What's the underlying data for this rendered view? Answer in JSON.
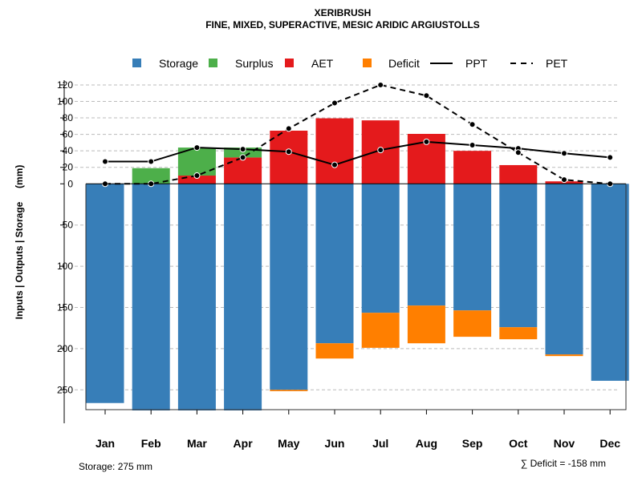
{
  "chart_data": {
    "type": "bar",
    "title": "XERIBRUSH",
    "subtitle": "FINE, MIXED, SUPERACTIVE, MESIC ARIDIC ARGIUSTOLLS",
    "ylabel": "Inputs | Outputs | Storage     (mm)",
    "categories": [
      "Jan",
      "Feb",
      "Mar",
      "Apr",
      "May",
      "Jun",
      "Jul",
      "Aug",
      "Sep",
      "Oct",
      "Nov",
      "Dec"
    ],
    "upper_ticks": [
      0,
      20,
      40,
      60,
      80,
      100,
      120
    ],
    "lower_ticks": [
      50,
      100,
      150,
      200,
      250
    ],
    "ylim": [
      -275,
      120
    ],
    "legend": [
      {
        "label": "Storage",
        "type": "square",
        "color": "#377EB8"
      },
      {
        "label": "Surplus",
        "type": "square",
        "color": "#4DAF4A"
      },
      {
        "label": "AET",
        "type": "square",
        "color": "#E41A1C"
      },
      {
        "label": "Deficit",
        "type": "square",
        "color": "#FF7F00"
      },
      {
        "label": "PPT",
        "type": "solid-line",
        "color": "#000000"
      },
      {
        "label": "PET",
        "type": "dashed-line",
        "color": "#000000"
      }
    ],
    "series": [
      {
        "name": "Storage",
        "values": [
          266,
          275,
          275,
          275,
          250,
          193.5,
          156.5,
          147.7,
          153.6,
          174,
          207,
          239
        ]
      },
      {
        "name": "Surplus",
        "values": [
          0,
          19,
          34,
          12,
          0,
          0,
          0,
          0,
          0,
          0,
          0,
          0
        ]
      },
      {
        "name": "AET",
        "values": [
          0,
          0,
          10,
          32,
          64.5,
          79.5,
          77,
          60.6,
          40,
          22.7,
          3,
          0
        ]
      },
      {
        "name": "Deficit",
        "values": [
          0,
          0,
          0,
          0,
          1.6,
          18.5,
          42.5,
          45.8,
          32,
          14.6,
          2,
          0
        ]
      },
      {
        "name": "PPT",
        "values": [
          27,
          27,
          44,
          42,
          39,
          23,
          41,
          51,
          47,
          43,
          37,
          32
        ]
      },
      {
        "name": "PET",
        "values": [
          0,
          0,
          10,
          32,
          67,
          98,
          120,
          107,
          72,
          38,
          5,
          0
        ]
      }
    ],
    "annotations": {
      "storage": "Storage: 275 mm",
      "deficit": "∑ Deficit = -158 mm"
    }
  }
}
